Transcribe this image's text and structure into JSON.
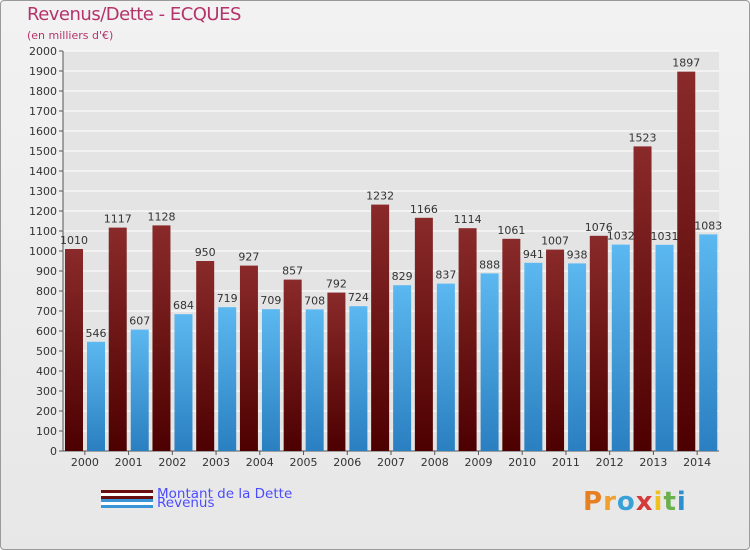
{
  "header": {
    "title": "Revenus/Dette - ECQUES",
    "subtitle": "(en milliers d'€)"
  },
  "chart_data": {
    "type": "bar",
    "categories": [
      "2000",
      "2001",
      "2002",
      "2003",
      "2004",
      "2005",
      "2006",
      "2007",
      "2008",
      "2009",
      "2010",
      "2011",
      "2012",
      "2013",
      "2014"
    ],
    "series": [
      {
        "name": "Montant de la Dette",
        "color": "#7a1d1d",
        "values": [
          1010,
          1117,
          1128,
          950,
          927,
          857,
          792,
          1232,
          1166,
          1114,
          1061,
          1007,
          1076,
          1523,
          1897
        ]
      },
      {
        "name": "Revenus",
        "color": "#4aa5e4",
        "values": [
          546,
          607,
          684,
          719,
          709,
          708,
          724,
          829,
          837,
          888,
          941,
          938,
          1032,
          1031,
          1083
        ]
      }
    ],
    "ylim": [
      0,
      2000
    ],
    "ytick_step": 100,
    "grid": true
  },
  "branding": {
    "logo": "Proxiti"
  }
}
